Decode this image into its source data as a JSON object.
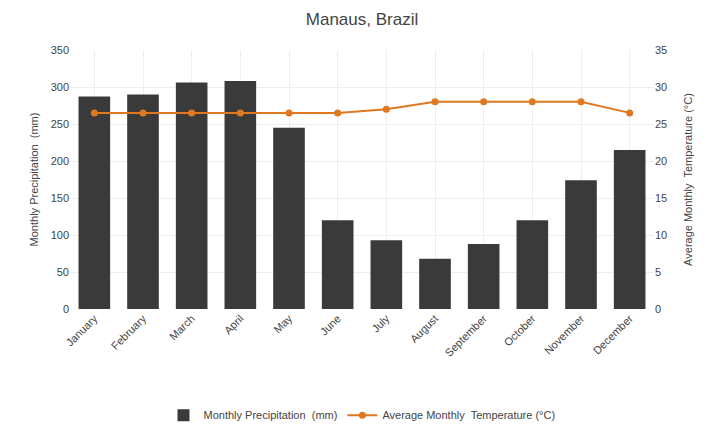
{
  "chart_data": {
    "type": "bar",
    "title": "Manaus, Brazil",
    "categories": [
      "January",
      "February",
      "March",
      "April",
      "May",
      "June",
      "July",
      "August",
      "September",
      "October",
      "November",
      "December"
    ],
    "series": [
      {
        "name": "Monthly Precipitation  (mm)",
        "type": "bar",
        "color": "#3a3a3a",
        "values": [
          287,
          290,
          306,
          308,
          245,
          120,
          93,
          68,
          88,
          120,
          174,
          215
        ]
      },
      {
        "name": "Average Monthly  Temperature (°C)",
        "type": "line",
        "color": "#e07820",
        "marker": "circle",
        "axis": "y2",
        "values": [
          26.5,
          26.5,
          26.5,
          26.5,
          26.5,
          26.5,
          27.0,
          28.0,
          28.0,
          28.0,
          28.0,
          26.5
        ]
      }
    ],
    "ylabel": "Monthly Precipitation  (mm)",
    "y2label": "Average Monthly  Temperature (°C)",
    "ylim": [
      0,
      350
    ],
    "yticks": [
      0,
      50,
      100,
      150,
      200,
      250,
      300,
      350
    ],
    "y2lim": [
      0,
      35
    ],
    "y2ticks": [
      0,
      5,
      10,
      15,
      20,
      25,
      30,
      35
    ],
    "grid": true,
    "legend": "bottom"
  }
}
